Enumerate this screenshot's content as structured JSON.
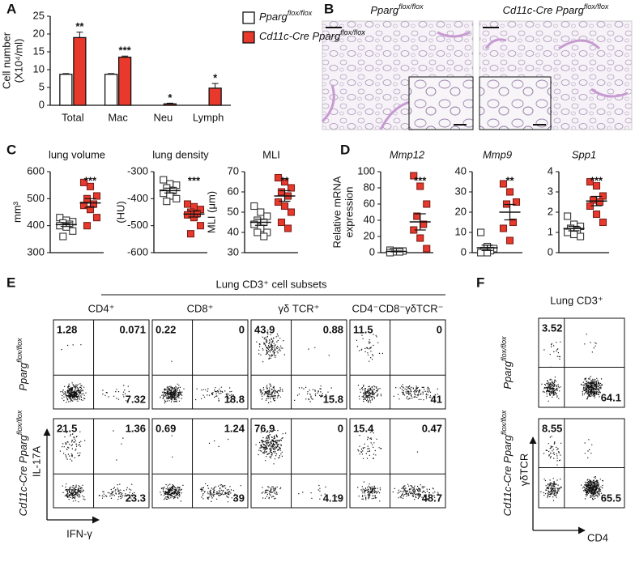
{
  "panel_labels": [
    "A",
    "B",
    "C",
    "D",
    "E",
    "F"
  ],
  "chart_data": [
    {
      "type": "bar",
      "ylabel": [
        "Cell number",
        "(X10⁴/ml)"
      ],
      "categories": [
        "Total",
        "Mac",
        "Neu",
        "Lymph"
      ],
      "series": [
        {
          "name": "Pparg",
          "name_sup": "flox/flox",
          "color": "#ffffff",
          "values": [
            8.7,
            8.7,
            0,
            0
          ],
          "errors": [
            0.2,
            0.2,
            0,
            0
          ]
        },
        {
          "name": "Cd11c-Cre Pparg",
          "name_sup": "flox/flox",
          "color": "#e8392c",
          "values": [
            19,
            13.5,
            0.4,
            4.8
          ],
          "errors": [
            1.5,
            0.3,
            0.2,
            1.3
          ]
        }
      ],
      "annotations": [
        "**",
        "***",
        "*",
        "*"
      ],
      "ylim": [
        0,
        25
      ],
      "yticks": [
        0,
        5,
        10,
        15,
        20,
        25
      ]
    },
    {
      "type": "dotplot",
      "title": "lung volume",
      "ylabel": [
        "mm³"
      ],
      "ylim": [
        300,
        600
      ],
      "yticks": [
        300,
        400,
        500,
        600
      ],
      "annotation": "***",
      "series": [
        {
          "color": "#ffffff",
          "values": [
            430,
            420,
            415,
            410,
            405,
            400,
            395,
            380,
            360
          ],
          "mean": 404,
          "sem": 7
        },
        {
          "color": "#e8392c",
          "values": [
            560,
            545,
            510,
            500,
            480,
            475,
            460,
            430,
            400
          ],
          "mean": 484,
          "sem": 16
        }
      ]
    },
    {
      "type": "dotplot",
      "title": "lung density",
      "ylabel": [
        "(HU)"
      ],
      "ylim": [
        -600,
        -300
      ],
      "yticks": [
        -600,
        -500,
        -400,
        -300
      ],
      "annotation": "***",
      "series": [
        {
          "color": "#ffffff",
          "values": [
            -330,
            -345,
            -350,
            -360,
            -370,
            -380,
            -390,
            -400,
            -410
          ],
          "mean": -370,
          "sem": 9
        },
        {
          "color": "#e8392c",
          "values": [
            -420,
            -430,
            -440,
            -450,
            -455,
            -460,
            -470,
            -500,
            -530
          ],
          "mean": -457,
          "sem": 11
        }
      ]
    },
    {
      "type": "dotplot",
      "title": "MLI",
      "ylabel": [
        "MLI (μm)"
      ],
      "ylim": [
        30,
        70
      ],
      "yticks": [
        30,
        40,
        50,
        60,
        70
      ],
      "annotation": "**",
      "series": [
        {
          "color": "#ffffff",
          "values": [
            53,
            50,
            48,
            46,
            45,
            44,
            42,
            40,
            40,
            38
          ],
          "mean": 45,
          "sem": 1.5
        },
        {
          "color": "#e8392c",
          "values": [
            67,
            65,
            62,
            60,
            58,
            55,
            53,
            50,
            45,
            42
          ],
          "mean": 58,
          "sem": 2.6
        }
      ]
    },
    {
      "type": "dotplot",
      "title": "Mmp12",
      "italic_title": true,
      "ylabel": [
        "Relative mRNA",
        "expression"
      ],
      "ylim": [
        0,
        100
      ],
      "yticks": [
        0,
        20,
        40,
        60,
        80,
        100
      ],
      "annotation": "***",
      "series": [
        {
          "color": "#ffffff",
          "values": [
            3,
            2,
            2,
            1,
            1,
            0
          ],
          "mean": 1.5,
          "sem": 0.5
        },
        {
          "color": "#e8392c",
          "values": [
            95,
            82,
            60,
            45,
            35,
            28,
            18,
            5
          ],
          "mean": 38,
          "sem": 10
        }
      ]
    },
    {
      "type": "dotplot",
      "title": "Mmp9",
      "italic_title": true,
      "ylim": [
        0,
        40
      ],
      "yticks": [
        0,
        10,
        20,
        30,
        40
      ],
      "annotation": "**",
      "series": [
        {
          "color": "#ffffff",
          "values": [
            10,
            3,
            2,
            1,
            1,
            0,
            0
          ],
          "mean": 2.4,
          "sem": 1.3
        },
        {
          "color": "#e8392c",
          "values": [
            34,
            30,
            25,
            24,
            15,
            12,
            6
          ],
          "mean": 20,
          "sem": 3.8
        }
      ]
    },
    {
      "type": "dotplot",
      "title": "Spp1",
      "italic_title": true,
      "ylim": [
        0,
        4
      ],
      "yticks": [
        0,
        1,
        2,
        3,
        4
      ],
      "annotation": "***",
      "series": [
        {
          "color": "#ffffff",
          "values": [
            1.8,
            1.4,
            1.3,
            1.2,
            1.1,
            1.0,
            0.9,
            0.8
          ],
          "mean": 1.19,
          "sem": 0.11
        },
        {
          "color": "#e8392c",
          "values": [
            3.5,
            3.3,
            2.8,
            2.6,
            2.5,
            2.3,
            1.9,
            1.5
          ],
          "mean": 2.55,
          "sem": 0.23
        }
      ]
    }
  ],
  "histology": {
    "titles": [
      {
        "name": "Pparg",
        "name_sup": "flox/flox"
      },
      {
        "name": "Cd11c-Cre Pparg",
        "name_sup": "flox/flox"
      }
    ]
  },
  "flow_e": {
    "title": "Lung CD3⁺ cell subsets",
    "columns": [
      "CD4⁺",
      "CD8⁺",
      "γδ TCR⁺",
      "CD4⁻CD8⁻γδTCR⁻"
    ],
    "rows": [
      {
        "name": "Pparg",
        "name_sup": "flox/flox"
      },
      {
        "name": "Cd11c-Cre Pparg",
        "name_sup": "flox/flox"
      }
    ],
    "y_label": "IL-17A",
    "x_label": "IFN-γ",
    "quadrants": [
      [
        [
          1.28,
          0.071,
          7.32
        ],
        [
          0.22,
          0,
          18.8
        ],
        [
          43.9,
          0.88,
          15.8
        ],
        [
          11.5,
          0,
          41
        ]
      ],
      [
        [
          21.5,
          1.36,
          23.3
        ],
        [
          0.69,
          1.24,
          39
        ],
        [
          76.9,
          0,
          4.19
        ],
        [
          15.4,
          0.47,
          48.7
        ]
      ]
    ]
  },
  "flow_f": {
    "title": "Lung CD3⁺",
    "rows": [
      {
        "name": "Pparg",
        "name_sup": "flox/flox"
      },
      {
        "name": "Cd11c-Cre Pparg",
        "name_sup": "flox/flox"
      }
    ],
    "y_label": "γδTCR",
    "x_label": "CD4",
    "quadrants": [
      [
        3.52,
        64.1
      ],
      [
        8.55,
        65.5
      ]
    ]
  }
}
